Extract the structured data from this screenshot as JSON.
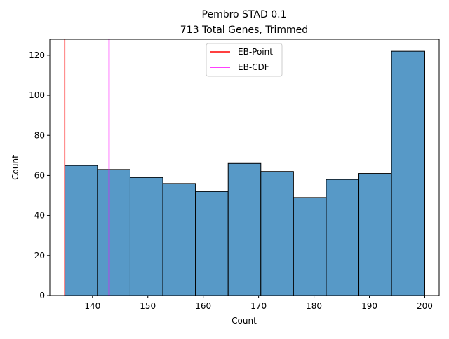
{
  "chart_data": {
    "type": "bar",
    "title": "Pembro STAD 0.1",
    "subtitle": "713 Total Genes, Trimmed",
    "xlabel": "Count",
    "ylabel": "Count",
    "xlim": [
      132.3,
      202.6
    ],
    "ylim": [
      0,
      128
    ],
    "grid": false,
    "legend_position": "top-center",
    "x_ticks": [
      140,
      150,
      160,
      170,
      180,
      190,
      200
    ],
    "y_ticks": [
      0,
      20,
      40,
      60,
      80,
      100,
      120
    ],
    "bin_edges": [
      135,
      140.9,
      146.8,
      152.7,
      158.6,
      164.5,
      170.4,
      176.3,
      182.2,
      188.1,
      194.0,
      200
    ],
    "values": [
      65,
      63,
      59,
      56,
      52,
      66,
      62,
      49,
      58,
      61,
      122
    ],
    "bar_color": "#5799c7",
    "vlines": [
      {
        "name": "EB-Point",
        "x": 135,
        "color": "#ff0000"
      },
      {
        "name": "EB-CDF",
        "x": 143,
        "color": "#ff00ff"
      }
    ]
  }
}
